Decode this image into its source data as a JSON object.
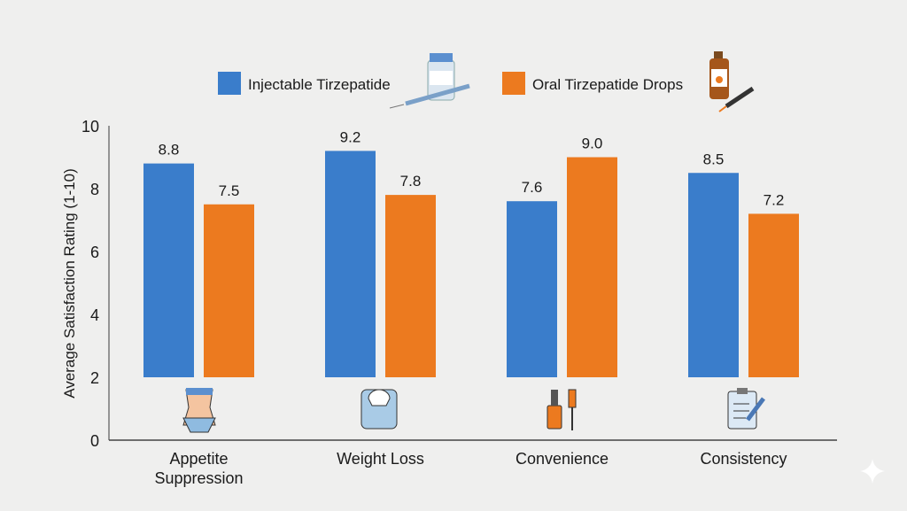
{
  "chart_data": {
    "type": "bar",
    "title": "",
    "xlabel": "",
    "ylabel": "Average Satisfaction Rating (1-10)",
    "ylim": [
      0,
      10
    ],
    "yticks": [
      "0",
      "2",
      "4",
      "6",
      "8",
      "10"
    ],
    "grid": false,
    "legend_position": "top",
    "bar_baseline": 2,
    "categories": [
      "Appetite\nSuppression",
      "Weight Loss",
      "Convenience",
      "Consistency"
    ],
    "category_lines": [
      [
        "Appetite",
        "Suppression"
      ],
      [
        "Weight Loss"
      ],
      [
        "Convenience"
      ],
      [
        "Consistency"
      ]
    ],
    "category_icons": [
      "waist-measure-icon",
      "bathroom-scale-icon",
      "dropper-bottles-icon",
      "clipboard-pencil-icon"
    ],
    "series": [
      {
        "name": "Injectable Tirzepatide",
        "color": "#3a7dcb",
        "values": [
          8.8,
          9.2,
          7.6,
          8.5
        ],
        "labels": [
          "8.8",
          "9.2",
          "7.6",
          "8.5"
        ],
        "icon": "vial-syringe-icon"
      },
      {
        "name": "Oral Tirzepatide Drops",
        "color": "#ec7a1f",
        "values": [
          7.5,
          7.8,
          9.0,
          7.2
        ],
        "labels": [
          "7.5",
          "7.8",
          "9.0",
          "7.2"
        ],
        "icon": "dropper-bottle-icon"
      }
    ]
  }
}
